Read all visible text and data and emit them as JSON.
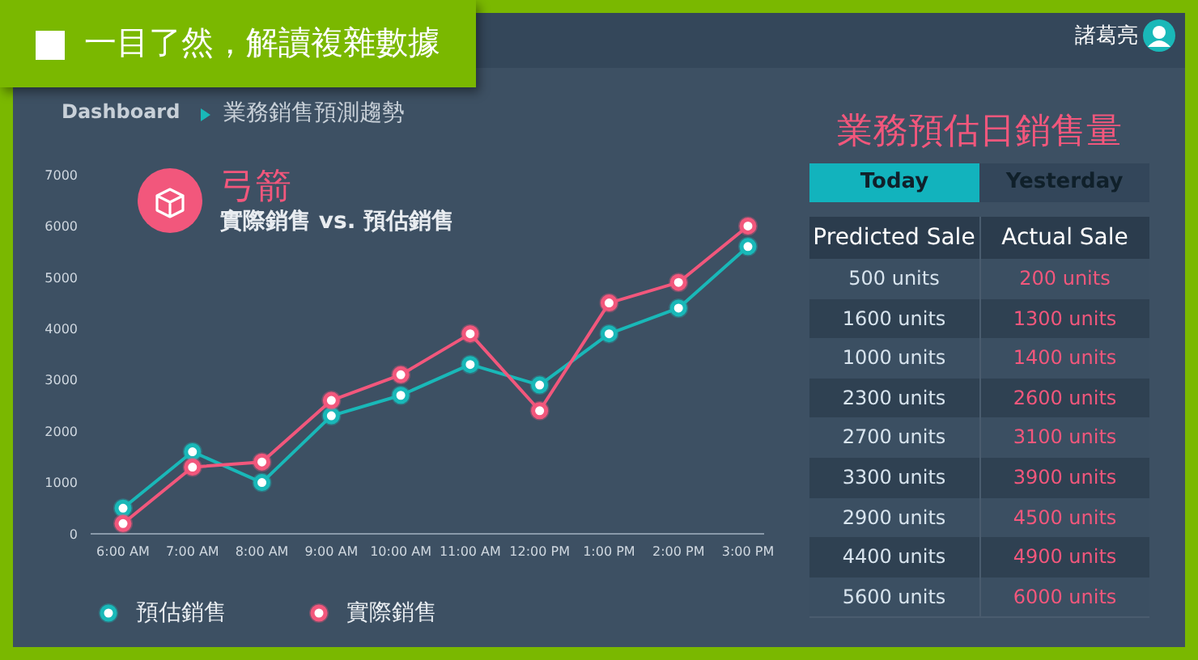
{
  "chart_data": [
    {
      "type": "line",
      "title": "弓箭",
      "subtitle": "實際銷售 vs. 預估銷售",
      "categories": [
        "6:00 AM",
        "7:00 AM",
        "8:00 AM",
        "9:00 AM",
        "10:00 AM",
        "11:00 AM",
        "12:00 PM",
        "1:00 PM",
        "2:00 PM",
        "3:00 PM"
      ],
      "series": [
        {
          "name": "預估銷售",
          "color": "#19b8b8",
          "values": [
            500,
            1600,
            1000,
            2300,
            2700,
            3300,
            2900,
            3900,
            4400,
            5600
          ]
        },
        {
          "name": "實際銷售",
          "color": "#f2577c",
          "values": [
            200,
            1300,
            1400,
            2600,
            3100,
            3900,
            2400,
            4500,
            4900,
            6000
          ]
        }
      ],
      "ylim": [
        0,
        7000
      ],
      "yticks": [
        0,
        1000,
        2000,
        3000,
        4000,
        5000,
        6000,
        7000
      ],
      "legend": "bottom left",
      "marker": "circle",
      "annotations": [
        "一目了然，解讀複雜數據",
        "Dashboard",
        "業務銷售預測趨勢",
        "諸葛亮"
      ]
    },
    {
      "type": "other",
      "title": "業務預估日銷售量",
      "annotations": [
        "Today",
        "Yesterday",
        "Predicted Sale",
        "Actual Sale",
        "500 units",
        "200 units",
        "1600 units",
        "1300 units",
        "1000 units",
        "1400 units",
        "2300 units",
        "2600 units",
        "2700 units",
        "3100 units",
        "3300 units",
        "3900 units",
        "2900 units",
        "4500 units",
        "4400 units",
        "4900 units",
        "5600 units",
        "6000 units"
      ]
    }
  ]
}
